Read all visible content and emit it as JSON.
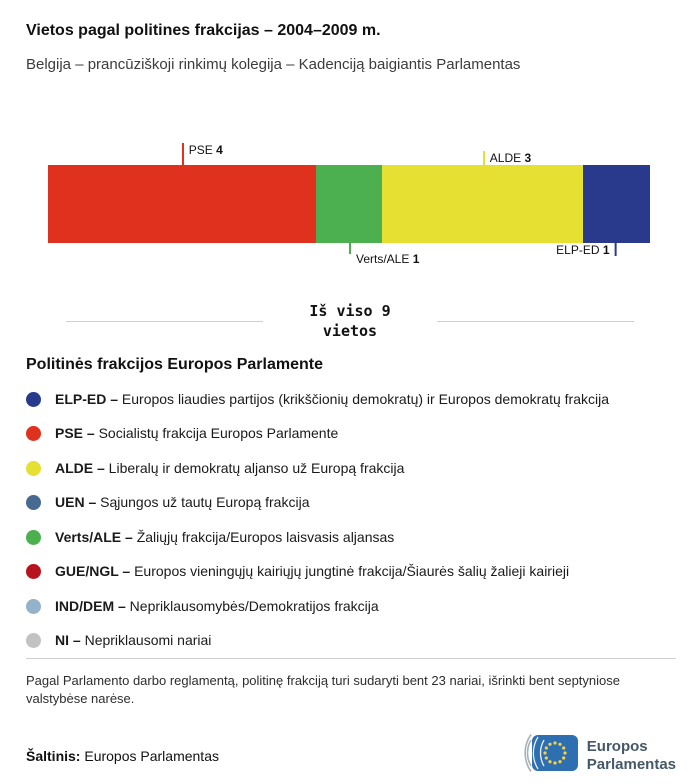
{
  "header": {
    "title": "Vietos pagal politines frakcijas – 2004–2009 m.",
    "subtitle": "Belgija – prancūziškoji rinkimų kolegija – Kadenciją baigiantis Parlamentas"
  },
  "chart_data": {
    "type": "bar",
    "orientation": "horizontal-stacked",
    "title": "Vietos pagal politines frakcijas – 2004–2009 m.",
    "subtitle": "Belgija – prancūziškoji rinkimų kolegija – Kadenciją baigiantis Parlamentas",
    "total": 9,
    "total_line1": "Iš viso 9",
    "total_line2": "vietos",
    "segments": [
      {
        "name": "PSE",
        "value": 4,
        "color": "#e0301e",
        "label": {
          "side": "top",
          "text_side": "right",
          "line_len": 22,
          "text_dy": 0
        }
      },
      {
        "name": "Verts/ALE",
        "value": 1,
        "color": "#4caf50",
        "label": {
          "side": "bottom",
          "text_side": "right",
          "line_len": 11,
          "text_dy": 9
        }
      },
      {
        "name": "ALDE",
        "value": 3,
        "color": "#e5e032",
        "label": {
          "side": "top",
          "text_side": "right",
          "line_len": 14,
          "text_dy": 0
        }
      },
      {
        "name": "ELP-ED",
        "value": 1,
        "color": "#293a8c",
        "label": {
          "side": "bottom",
          "text_side": "left",
          "line_len": 13,
          "text_dy": 0
        }
      }
    ]
  },
  "legend": {
    "title": "Politinės frakcijos Europos Parlamente",
    "items": [
      {
        "name": "ELP-ED",
        "label": "ELP-ED –",
        "text": "Europos liaudies partijos (krikščionių demokratų) ir Europos demokratų frakcija",
        "color": "#293a8c"
      },
      {
        "name": "PSE",
        "label": "PSE –",
        "text": "Socialistų frakcija Europos Parlamente",
        "color": "#e0301e"
      },
      {
        "name": "ALDE",
        "label": "ALDE –",
        "text": "Liberalų ir demokratų aljanso už Europą frakcija",
        "color": "#e5e032"
      },
      {
        "name": "UEN",
        "label": "UEN –",
        "text": "Sąjungos už tautų Europą frakcija",
        "color": "#476a91"
      },
      {
        "name": "Verts/ALE",
        "label": "Verts/ALE –",
        "text": "Žaliųjų frakcija/Europos laisvasis aljansas",
        "color": "#4caf50"
      },
      {
        "name": "GUE/NGL",
        "label": "GUE/NGL –",
        "text": "Europos vieningųjų kairiųjų jungtinė frakcija/Šiaurės šalių žalieji kairieji",
        "color": "#b9121f"
      },
      {
        "name": "IND/DEM",
        "label": "IND/DEM –",
        "text": "Nepriklausomybės/Demokratijos frakcija",
        "color": "#94b3ca"
      },
      {
        "name": "NI",
        "label": "NI –",
        "text": "Nepriklausomi nariai",
        "color": "#c2c2c2"
      }
    ]
  },
  "footer": {
    "note": "Pagal Parlamento darbo reglamentą, politinę frakciją turi sudaryti bent 23 nariai, išrinkti bent septyniose valstybėse narėse.",
    "source_label": "Šaltinis:",
    "source": "Europos Parlamentas",
    "logo": {
      "line1": "Europos",
      "line2": "Parlamentas"
    }
  }
}
